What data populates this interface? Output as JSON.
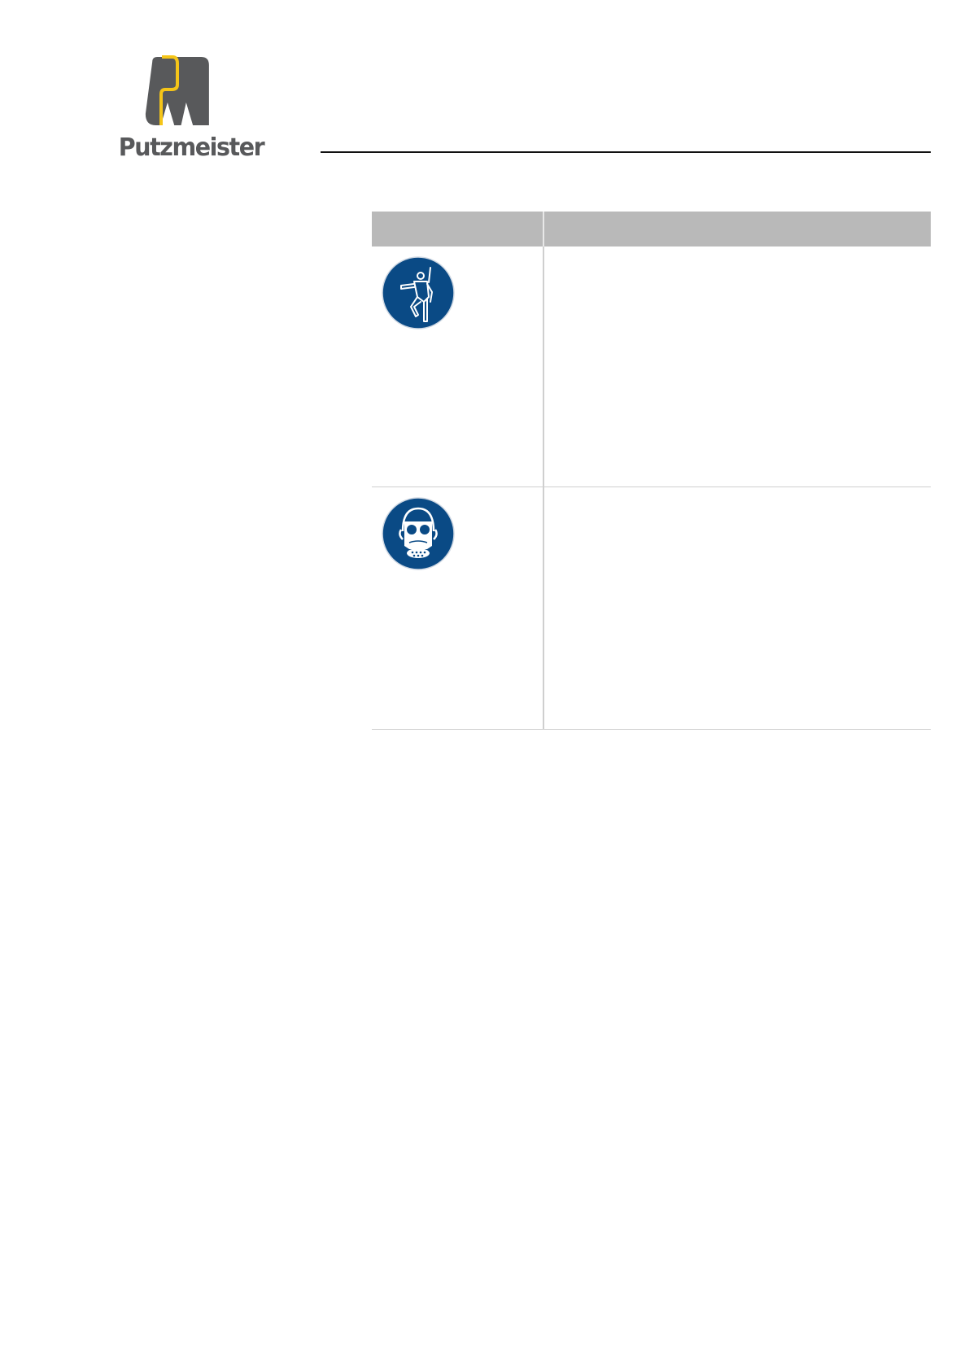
{
  "header": {
    "logo_text": "Putzmeister",
    "brand_colors": {
      "grey": "#58595b",
      "yellow": "#f5c518"
    }
  },
  "table": {
    "columns": [
      "",
      ""
    ],
    "rows": [
      {
        "icon": "safety-harness-mandatory-icon",
        "text": ""
      },
      {
        "icon": "respirator-mask-mandatory-icon",
        "text": ""
      }
    ],
    "sign_color": "#0a4a85"
  }
}
